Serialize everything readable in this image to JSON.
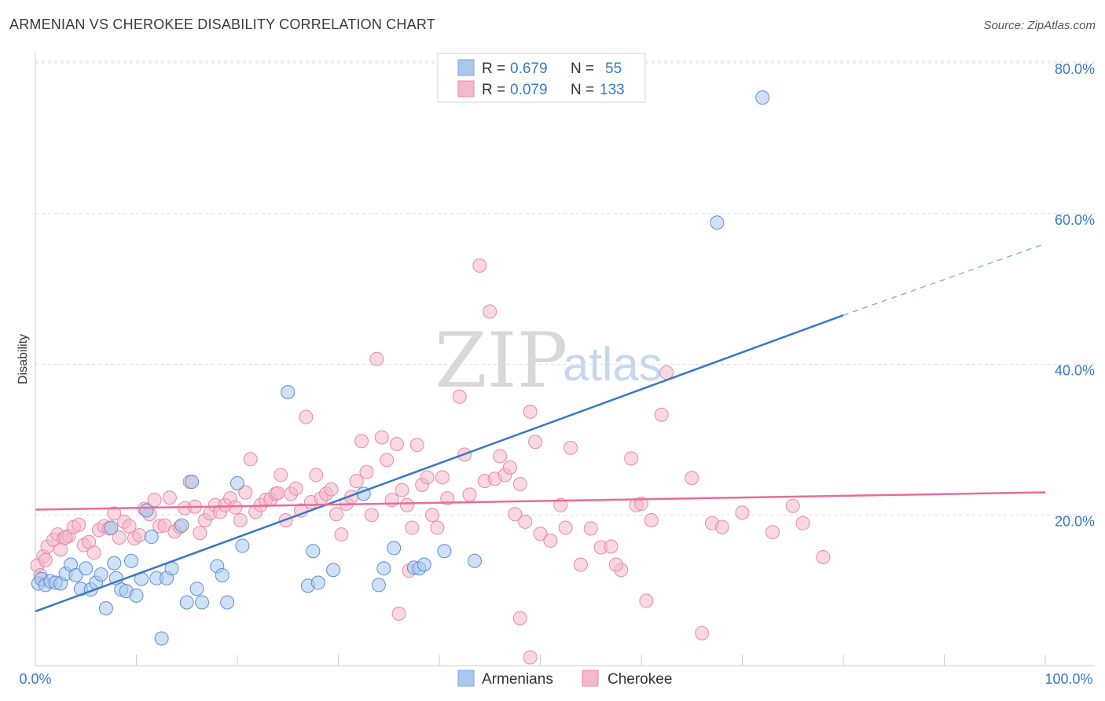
{
  "header": {
    "title": "ARMENIAN VS CHEROKEE DISABILITY CORRELATION CHART",
    "source": "Source: ZipAtlas.com"
  },
  "watermark": {
    "zip": "ZIP",
    "atlas": "atlas"
  },
  "legend": {
    "rows": [
      {
        "r_label": "R =",
        "r_value": "0.679",
        "n_label": "N =",
        "n_value": "55",
        "color": "#aac8f0"
      },
      {
        "r_label": "R =",
        "r_value": "0.079",
        "n_label": "N =",
        "n_value": "133",
        "color": "#f4b8cb"
      }
    ]
  },
  "bottom_legend": {
    "items": [
      {
        "label": "Armenians",
        "color": "#aac8f0"
      },
      {
        "label": "Cherokee",
        "color": "#f4b8cb"
      }
    ]
  },
  "chart_data": {
    "type": "scatter",
    "title": "ARMENIAN VS CHEROKEE DISABILITY CORRELATION CHART",
    "xlabel": "",
    "ylabel": "Disability",
    "xlim": [
      0,
      100
    ],
    "ylim": [
      0,
      80
    ],
    "x_tick_labels": [
      "0.0%",
      "100.0%"
    ],
    "y_tick_labels": [
      "20.0%",
      "40.0%",
      "60.0%",
      "80.0%"
    ],
    "y_ticks": [
      20,
      40,
      60,
      80
    ],
    "grid": "horizontal dashed",
    "legend_position": "top-center",
    "colors": {
      "armenians": "#3a78c6",
      "cherokee": "#e86d97"
    },
    "series": [
      {
        "name": "Armenians",
        "color": "#aac8f0",
        "stroke": "#5a8fd6",
        "trend": {
          "x0": 0,
          "y0": 7.2,
          "x1": 80,
          "y1": 46.5,
          "dash_to_x": 100,
          "dash_to_y": 56.0
        },
        "points": [
          [
            0.3,
            10.9
          ],
          [
            0.6,
            11.5
          ],
          [
            1.0,
            10.7
          ],
          [
            1.5,
            11.2
          ],
          [
            2.0,
            11.0
          ],
          [
            2.5,
            10.9
          ],
          [
            3.0,
            12.2
          ],
          [
            3.5,
            13.4
          ],
          [
            4.0,
            12.0
          ],
          [
            4.5,
            10.2
          ],
          [
            5.0,
            12.9
          ],
          [
            5.5,
            10.1
          ],
          [
            6.0,
            11.0
          ],
          [
            6.5,
            12.1
          ],
          [
            7.0,
            7.6
          ],
          [
            7.5,
            18.3
          ],
          [
            8.0,
            11.6
          ],
          [
            8.5,
            10.1
          ],
          [
            9.0,
            9.9
          ],
          [
            9.5,
            13.9
          ],
          [
            10.0,
            9.3
          ],
          [
            10.5,
            11.5
          ],
          [
            11.0,
            20.6
          ],
          [
            11.5,
            17.1
          ],
          [
            12.0,
            11.6
          ],
          [
            12.5,
            3.6
          ],
          [
            13.0,
            11.6
          ],
          [
            13.5,
            12.9
          ],
          [
            14.5,
            18.6
          ],
          [
            15.0,
            8.4
          ],
          [
            15.5,
            24.4
          ],
          [
            16.0,
            10.2
          ],
          [
            16.5,
            8.4
          ],
          [
            18.0,
            13.2
          ],
          [
            18.5,
            12.0
          ],
          [
            19.0,
            8.4
          ],
          [
            20.0,
            24.2
          ],
          [
            20.5,
            15.9
          ],
          [
            25.0,
            36.3
          ],
          [
            27.0,
            10.6
          ],
          [
            27.5,
            15.2
          ],
          [
            28.0,
            11.0
          ],
          [
            29.5,
            12.7
          ],
          [
            32.5,
            22.8
          ],
          [
            34.0,
            10.7
          ],
          [
            34.5,
            12.9
          ],
          [
            35.5,
            15.6
          ],
          [
            37.5,
            13.0
          ],
          [
            38.0,
            12.9
          ],
          [
            38.5,
            13.4
          ],
          [
            40.5,
            15.2
          ],
          [
            43.5,
            13.9
          ],
          [
            67.5,
            58.8
          ],
          [
            72.0,
            75.4
          ],
          [
            7.8,
            13.6
          ]
        ]
      },
      {
        "name": "Cherokee",
        "color": "#f4b8cb",
        "stroke": "#e889a8",
        "trend": {
          "x0": 0,
          "y0": 20.7,
          "x1": 100,
          "y1": 23.0
        },
        "points": [
          [
            0.2,
            13.3
          ],
          [
            0.5,
            12.0
          ],
          [
            0.8,
            14.5
          ],
          [
            1.2,
            15.8
          ],
          [
            1.8,
            16.7
          ],
          [
            2.2,
            17.4
          ],
          [
            2.8,
            16.9
          ],
          [
            3.3,
            17.2
          ],
          [
            3.8,
            18.4
          ],
          [
            4.3,
            18.7
          ],
          [
            4.8,
            16.0
          ],
          [
            5.3,
            16.4
          ],
          [
            5.8,
            15.0
          ],
          [
            6.3,
            18.0
          ],
          [
            6.8,
            18.5
          ],
          [
            7.3,
            18.2
          ],
          [
            7.8,
            20.2
          ],
          [
            8.3,
            17.0
          ],
          [
            8.8,
            19.1
          ],
          [
            9.3,
            18.5
          ],
          [
            9.8,
            16.9
          ],
          [
            10.3,
            17.3
          ],
          [
            10.8,
            20.8
          ],
          [
            11.3,
            20.1
          ],
          [
            11.8,
            22.0
          ],
          [
            12.3,
            18.5
          ],
          [
            12.8,
            18.6
          ],
          [
            13.3,
            22.3
          ],
          [
            13.8,
            17.8
          ],
          [
            14.3,
            18.4
          ],
          [
            14.8,
            20.9
          ],
          [
            15.3,
            24.4
          ],
          [
            15.8,
            21.1
          ],
          [
            16.3,
            17.6
          ],
          [
            16.8,
            19.3
          ],
          [
            17.3,
            20.2
          ],
          [
            17.8,
            21.3
          ],
          [
            18.3,
            20.4
          ],
          [
            18.8,
            21.3
          ],
          [
            19.3,
            22.2
          ],
          [
            19.8,
            21.0
          ],
          [
            20.3,
            19.3
          ],
          [
            20.8,
            23.0
          ],
          [
            21.3,
            27.4
          ],
          [
            21.8,
            20.4
          ],
          [
            22.3,
            21.3
          ],
          [
            22.8,
            22.0
          ],
          [
            23.3,
            22.1
          ],
          [
            23.8,
            22.8
          ],
          [
            24.3,
            25.3
          ],
          [
            24.8,
            19.3
          ],
          [
            25.3,
            22.8
          ],
          [
            25.8,
            23.5
          ],
          [
            26.3,
            20.6
          ],
          [
            26.8,
            33.0
          ],
          [
            27.3,
            21.7
          ],
          [
            27.8,
            25.3
          ],
          [
            28.3,
            22.2
          ],
          [
            28.8,
            22.8
          ],
          [
            29.3,
            23.4
          ],
          [
            29.8,
            20.1
          ],
          [
            30.3,
            17.4
          ],
          [
            30.8,
            21.5
          ],
          [
            31.3,
            22.4
          ],
          [
            31.8,
            24.5
          ],
          [
            32.3,
            29.8
          ],
          [
            32.8,
            25.7
          ],
          [
            33.3,
            20.0
          ],
          [
            33.8,
            40.7
          ],
          [
            34.3,
            30.3
          ],
          [
            34.8,
            27.3
          ],
          [
            35.3,
            22.0
          ],
          [
            35.8,
            29.4
          ],
          [
            36.3,
            23.3
          ],
          [
            36.8,
            21.3
          ],
          [
            37.3,
            18.3
          ],
          [
            37.8,
            29.3
          ],
          [
            38.3,
            24.0
          ],
          [
            38.8,
            25.0
          ],
          [
            39.3,
            20.0
          ],
          [
            39.8,
            18.3
          ],
          [
            40.3,
            25.0
          ],
          [
            40.8,
            22.2
          ],
          [
            42.0,
            35.7
          ],
          [
            42.5,
            28.0
          ],
          [
            43.0,
            22.7
          ],
          [
            44.0,
            53.1
          ],
          [
            44.5,
            24.5
          ],
          [
            45.0,
            47.0
          ],
          [
            45.5,
            24.8
          ],
          [
            46.0,
            27.8
          ],
          [
            46.5,
            25.3
          ],
          [
            47.0,
            26.3
          ],
          [
            47.5,
            20.1
          ],
          [
            48.0,
            24.1
          ],
          [
            48.5,
            19.1
          ],
          [
            49.0,
            33.7
          ],
          [
            49.5,
            29.7
          ],
          [
            50.0,
            17.5
          ],
          [
            51.0,
            16.6
          ],
          [
            52.0,
            21.3
          ],
          [
            52.5,
            18.3
          ],
          [
            53.0,
            28.9
          ],
          [
            54.0,
            13.4
          ],
          [
            55.0,
            18.2
          ],
          [
            56.0,
            15.7
          ],
          [
            57.0,
            15.8
          ],
          [
            58.0,
            12.7
          ],
          [
            59.0,
            27.5
          ],
          [
            59.5,
            21.3
          ],
          [
            60.0,
            21.5
          ],
          [
            60.5,
            8.6
          ],
          [
            61.0,
            19.3
          ],
          [
            62.0,
            33.3
          ],
          [
            62.5,
            38.9
          ],
          [
            65.0,
            24.9
          ],
          [
            66.0,
            4.3
          ],
          [
            67.0,
            18.9
          ],
          [
            68.0,
            18.4
          ],
          [
            70.0,
            20.3
          ],
          [
            73.0,
            17.7
          ],
          [
            75.0,
            21.2
          ],
          [
            76.0,
            18.9
          ],
          [
            78.0,
            14.4
          ],
          [
            48.0,
            6.3
          ],
          [
            49.0,
            1.1
          ],
          [
            36.0,
            6.9
          ],
          [
            37.0,
            12.6
          ],
          [
            57.5,
            13.4
          ],
          [
            1.0,
            14.0
          ],
          [
            2.5,
            15.4
          ],
          [
            3.0,
            17.0
          ],
          [
            24.0,
            22.9
          ]
        ]
      }
    ]
  }
}
